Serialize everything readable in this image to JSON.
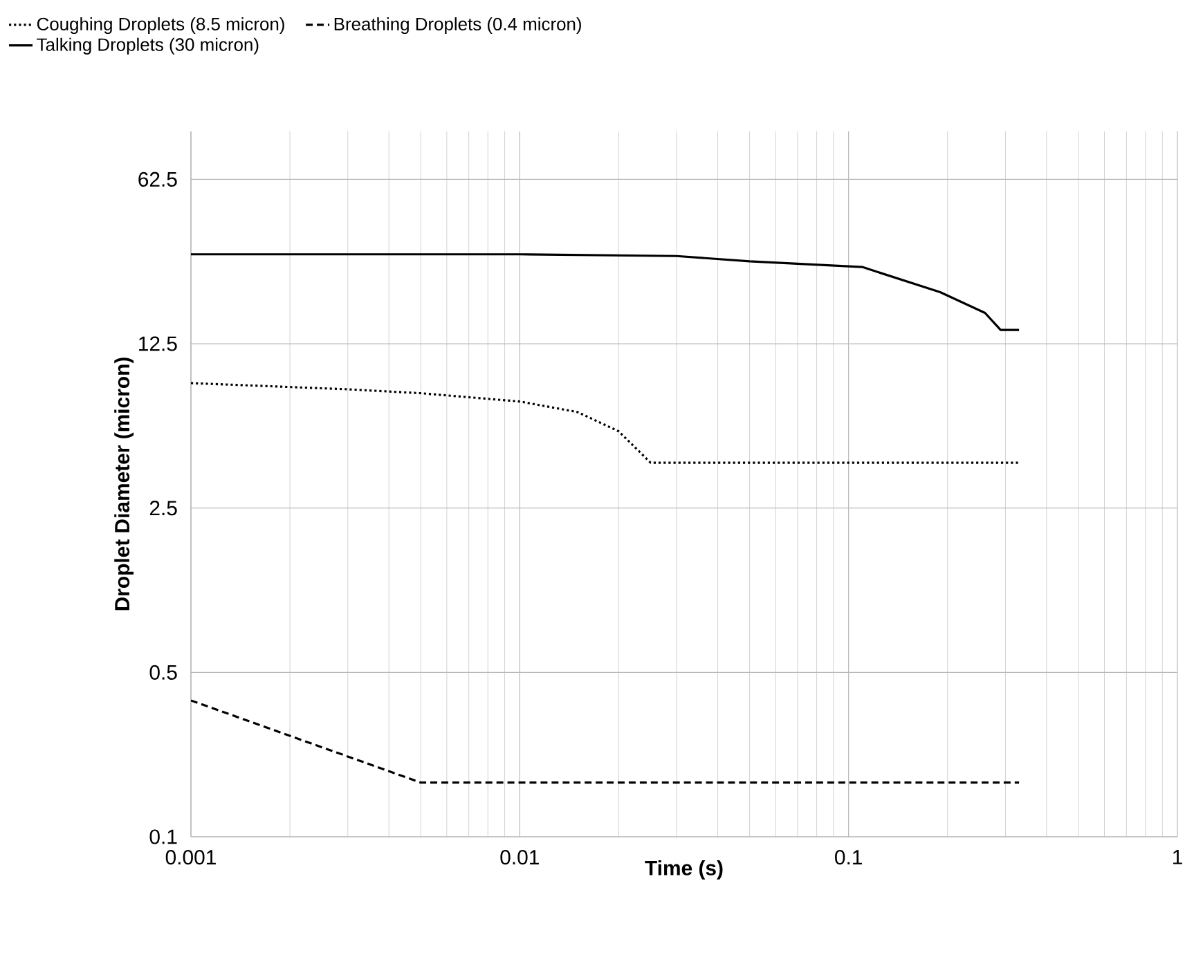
{
  "chart_data": {
    "type": "line",
    "xlabel": "Time (s)",
    "ylabel": "Droplet Diameter (micron)",
    "log": "xy",
    "xlim": [
      0.001,
      1
    ],
    "xticks": [
      0.001,
      0.01,
      0.1,
      1
    ],
    "ylim": [
      0.1,
      100
    ],
    "yticks": [
      0.1,
      0.5,
      2.5,
      12.5,
      62.5
    ],
    "grid": true,
    "legend": "top",
    "marker": "none",
    "series": [
      {
        "name": "Coughing Droplets (8.5 micron)",
        "color": "#000000",
        "line_style": "dotted",
        "x": [
          0.001,
          0.003,
          0.005,
          0.01,
          0.015,
          0.02,
          0.025,
          0.33
        ],
        "values": [
          8.5,
          8.0,
          7.7,
          7.1,
          6.4,
          5.3,
          3.9,
          3.9
        ]
      },
      {
        "name": "Breathing Droplets (0.4 micron)",
        "color": "#000000",
        "line_style": "dashed",
        "x": [
          0.001,
          0.005,
          0.33
        ],
        "values": [
          0.38,
          0.17,
          0.17
        ]
      },
      {
        "name": "Talking Droplets (30 micron)",
        "color": "#000000",
        "line_style": "solid",
        "x": [
          0.001,
          0.01,
          0.03,
          0.05,
          0.11,
          0.19,
          0.26,
          0.29,
          0.33
        ],
        "values": [
          30,
          30,
          29.5,
          28,
          26.5,
          20.7,
          16.9,
          14.3,
          14.3
        ]
      }
    ]
  }
}
